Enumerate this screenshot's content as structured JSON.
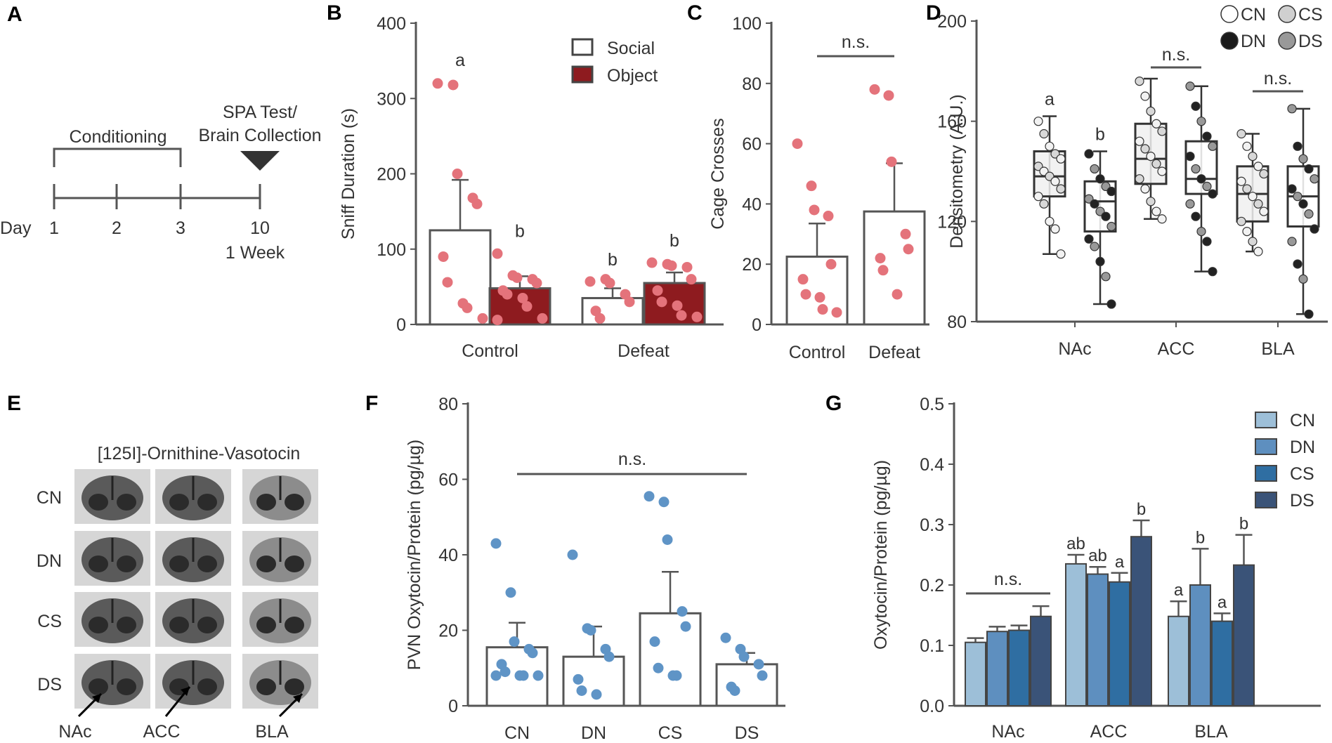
{
  "panels": {
    "A": {
      "label": "A",
      "conditioning": "Conditioning",
      "spa_test_line1": "SPA Test/",
      "spa_test_line2": "Brain Collection",
      "day_label": "Day",
      "days": [
        "1",
        "2",
        "3",
        "10"
      ],
      "week_label": "1 Week"
    },
    "E": {
      "label": "E",
      "title": "[125I]-Ornithine-Vasotocin",
      "rows": [
        "CN",
        "DN",
        "CS",
        "DS"
      ],
      "regions": [
        "NAc",
        "ACC",
        "BLA"
      ]
    }
  },
  "colors": {
    "salmon": "#e4737b",
    "darkred": "#8e1b1f",
    "blue_point": "#5f94c6",
    "axis": "#555555",
    "g_cn": "#9dbfd8",
    "g_dn": "#5e8fbf",
    "g_cs": "#2f6ea2",
    "g_ds": "#3a5378"
  },
  "chart_data": [
    {
      "panel": "B",
      "type": "bar",
      "ylabel": "Sniff Duration (s)",
      "ylim": [
        0,
        400
      ],
      "yticks": [
        0,
        100,
        200,
        300,
        400
      ],
      "categories": [
        "Control",
        "Defeat"
      ],
      "legend": [
        "Social",
        "Object"
      ],
      "series": [
        {
          "name": "Social",
          "values": [
            125,
            35
          ],
          "errors": [
            67,
            13
          ],
          "points": [
            [
              320,
              318,
              200,
              168,
              160,
              90,
              56,
              28,
              22,
              8
            ],
            [
              57,
              60,
              55,
              40,
              30,
              18,
              8
            ]
          ]
        },
        {
          "name": "Object",
          "values": [
            48,
            55
          ],
          "errors": [
            16,
            14
          ],
          "points": [
            [
              94,
              65,
              62,
              60,
              55,
              45,
              40,
              35,
              24,
              8,
              6
            ],
            [
              82,
              80,
              78,
              76,
              60,
              45,
              30,
              25,
              12,
              10
            ]
          ]
        }
      ],
      "letters": [
        [
          "a",
          "b"
        ],
        [
          "b",
          "b"
        ]
      ]
    },
    {
      "panel": "C",
      "type": "bar",
      "ylabel": "Cage Crosses",
      "ylim": [
        0,
        100
      ],
      "yticks": [
        0,
        20,
        40,
        60,
        80,
        100
      ],
      "categories": [
        "Control",
        "Defeat"
      ],
      "values": [
        22.5,
        37.5
      ],
      "errors": [
        11,
        16
      ],
      "points": [
        [
          60,
          46,
          38,
          36,
          20,
          15,
          10,
          9,
          5,
          4
        ],
        [
          78,
          76,
          54,
          30,
          25,
          22,
          18,
          10
        ]
      ],
      "annotation": "n.s."
    },
    {
      "panel": "D",
      "type": "box",
      "ylabel": "Densitometry (A.U.)",
      "ylim": [
        80,
        200
      ],
      "yticks": [
        80,
        120,
        160,
        200
      ],
      "categories": [
        "NAc",
        "ACC",
        "BLA"
      ],
      "legend": [
        "CN",
        "CS",
        "DN",
        "DS"
      ],
      "groups": [
        {
          "group": "NAc",
          "boxes": [
            {
              "q1": 130,
              "median": 138,
              "q3": 148,
              "min": 107,
              "max": 162,
              "points": [
                [
                  160,
                  "#f2f2f2"
                ],
                [
                  155,
                  "#d8d8d8"
                ],
                [
                  150,
                  "#f2f2f2"
                ],
                [
                  147,
                  "#d8d8d8"
                ],
                [
                  145,
                  "#f2f2f2"
                ],
                [
                  142,
                  "#d8d8d8"
                ],
                [
                  140,
                  "#f2f2f2"
                ],
                [
                  138,
                  "#d8d8d8"
                ],
                [
                  136,
                  "#f2f2f2"
                ],
                [
                  133,
                  "#d8d8d8"
                ],
                [
                  130,
                  "#f2f2f2"
                ],
                [
                  127,
                  "#d8d8d8"
                ],
                [
                  120,
                  "#f2f2f2"
                ],
                [
                  117,
                  "#f2f2f2"
                ],
                [
                  107,
                  "#f2f2f2"
                ]
              ]
            },
            {
              "q1": 116,
              "median": 128,
              "q3": 136,
              "min": 87,
              "max": 148,
              "points": [
                [
                  147,
                  "#222222"
                ],
                [
                  141,
                  "#999999"
                ],
                [
                  137,
                  "#222222"
                ],
                [
                  134,
                  "#999999"
                ],
                [
                  132,
                  "#222222"
                ],
                [
                  129,
                  "#999999"
                ],
                [
                  127,
                  "#222222"
                ],
                [
                  124,
                  "#999999"
                ],
                [
                  122,
                  "#222222"
                ],
                [
                  118,
                  "#999999"
                ],
                [
                  113,
                  "#222222"
                ],
                [
                  110,
                  "#999999"
                ],
                [
                  104,
                  "#222222"
                ],
                [
                  98,
                  "#999999"
                ],
                [
                  87,
                  "#222222"
                ]
              ]
            }
          ],
          "letters": [
            "a",
            "b"
          ]
        },
        {
          "group": "ACC",
          "boxes": [
            {
              "q1": 135,
              "median": 145,
              "q3": 159,
              "min": 121,
              "max": 177,
              "points": [
                [
                  176,
                  "#d8d8d8"
                ],
                [
                  170,
                  "#f2f2f2"
                ],
                [
                  164,
                  "#d8d8d8"
                ],
                [
                  159,
                  "#f2f2f2"
                ],
                [
                  156,
                  "#d8d8d8"
                ],
                [
                  152,
                  "#f2f2f2"
                ],
                [
                  149,
                  "#d8d8d8"
                ],
                [
                  146,
                  "#f2f2f2"
                ],
                [
                  143,
                  "#d8d8d8"
                ],
                [
                  140,
                  "#f2f2f2"
                ],
                [
                  137,
                  "#d8d8d8"
                ],
                [
                  133,
                  "#f2f2f2"
                ],
                [
                  128,
                  "#d8d8d8"
                ],
                [
                  124,
                  "#f2f2f2"
                ],
                [
                  121,
                  "#f2f2f2"
                ]
              ]
            },
            {
              "q1": 131,
              "median": 137,
              "q3": 152,
              "min": 100,
              "max": 174,
              "points": [
                [
                  174,
                  "#999999"
                ],
                [
                  166,
                  "#222222"
                ],
                [
                  160,
                  "#999999"
                ],
                [
                  154,
                  "#222222"
                ],
                [
                  150,
                  "#999999"
                ],
                [
                  146,
                  "#222222"
                ],
                [
                  141,
                  "#999999"
                ],
                [
                  137,
                  "#222222"
                ],
                [
                  134,
                  "#999999"
                ],
                [
                  131,
                  "#222222"
                ],
                [
                  127,
                  "#999999"
                ],
                [
                  122,
                  "#222222"
                ],
                [
                  116,
                  "#999999"
                ],
                [
                  112,
                  "#222222"
                ],
                [
                  100,
                  "#222222"
                ]
              ]
            }
          ],
          "letters": [],
          "annotation": "n.s."
        },
        {
          "group": "BLA",
          "boxes": [
            {
              "q1": 120,
              "median": 131,
              "q3": 142,
              "min": 108,
              "max": 155,
              "points": [
                [
                  155,
                  "#d8d8d8"
                ],
                [
                  150,
                  "#f2f2f2"
                ],
                [
                  146,
                  "#d8d8d8"
                ],
                [
                  142,
                  "#f2f2f2"
                ],
                [
                  139,
                  "#d8d8d8"
                ],
                [
                  136,
                  "#f2f2f2"
                ],
                [
                  133,
                  "#d8d8d8"
                ],
                [
                  130,
                  "#f2f2f2"
                ],
                [
                  127,
                  "#d8d8d8"
                ],
                [
                  124,
                  "#f2f2f2"
                ],
                [
                  120,
                  "#d8d8d8"
                ],
                [
                  116,
                  "#f2f2f2"
                ],
                [
                  112,
                  "#d8d8d8"
                ],
                [
                  108,
                  "#f2f2f2"
                ]
              ]
            },
            {
              "q1": 118,
              "median": 130,
              "q3": 142,
              "min": 83,
              "max": 165,
              "points": [
                [
                  165,
                  "#999999"
                ],
                [
                  150,
                  "#222222"
                ],
                [
                  145,
                  "#999999"
                ],
                [
                  141,
                  "#222222"
                ],
                [
                  137,
                  "#999999"
                ],
                [
                  133,
                  "#222222"
                ],
                [
                  130,
                  "#999999"
                ],
                [
                  127,
                  "#222222"
                ],
                [
                  123,
                  "#999999"
                ],
                [
                  117,
                  "#222222"
                ],
                [
                  112,
                  "#999999"
                ],
                [
                  103,
                  "#222222"
                ],
                [
                  97,
                  "#999999"
                ],
                [
                  83,
                  "#222222"
                ]
              ]
            }
          ],
          "letters": [],
          "annotation": "n.s."
        }
      ]
    },
    {
      "panel": "F",
      "type": "bar",
      "ylabel": "PVN Oxytocin/Protein (pg/µg)",
      "ylim": [
        0,
        80
      ],
      "yticks": [
        0,
        20,
        40,
        60,
        80
      ],
      "categories": [
        "CN",
        "DN",
        "CS",
        "DS"
      ],
      "values": [
        15.5,
        13,
        24.5,
        11
      ],
      "errors": [
        6.5,
        8,
        11,
        3
      ],
      "points": [
        [
          43,
          30,
          17,
          15,
          14,
          11,
          9,
          8,
          8,
          8,
          8
        ],
        [
          40,
          20.5,
          20,
          15,
          13,
          7,
          4,
          3
        ],
        [
          55.5,
          54,
          44,
          25,
          21,
          17,
          10,
          8,
          8
        ],
        [
          18,
          15,
          13,
          11,
          8,
          5,
          4
        ]
      ],
      "annotation": "n.s."
    },
    {
      "panel": "G",
      "type": "bar",
      "ylabel": "Oxytocin/Protein (pg/µg)",
      "ylim": [
        0,
        0.5
      ],
      "yticks": [
        "0.0",
        "0.1",
        "0.2",
        "0.3",
        "0.4",
        "0.5"
      ],
      "categories": [
        "NAc",
        "ACC",
        "BLA"
      ],
      "legend": [
        "CN",
        "DN",
        "CS",
        "DS"
      ],
      "series": [
        {
          "name": "CN",
          "values": [
            0.105,
            0.235,
            0.148
          ],
          "errors": [
            0.007,
            0.015,
            0.025
          ]
        },
        {
          "name": "DN",
          "values": [
            0.123,
            0.218,
            0.2
          ],
          "errors": [
            0.008,
            0.012,
            0.06
          ]
        },
        {
          "name": "CS",
          "values": [
            0.125,
            0.205,
            0.14
          ],
          "errors": [
            0.008,
            0.015,
            0.013
          ]
        },
        {
          "name": "DS",
          "values": [
            0.148,
            0.28,
            0.233
          ],
          "errors": [
            0.017,
            0.027,
            0.05
          ]
        }
      ],
      "letters": [
        [],
        [
          "ab",
          "ab",
          "a",
          "b"
        ],
        [
          "a",
          "b",
          "a",
          "b"
        ]
      ],
      "annotation": "n.s."
    }
  ]
}
